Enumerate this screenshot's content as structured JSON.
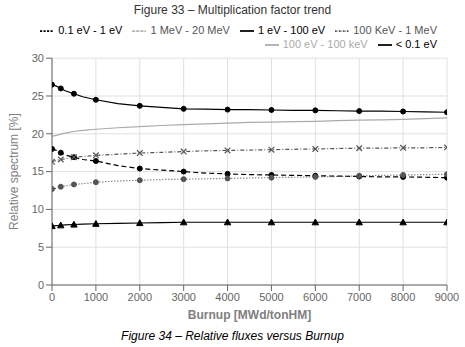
{
  "chart_data": {
    "type": "line",
    "title": "Figure 33 – Multiplication factor trend",
    "subtitle": "Figure 34 – Relative fluxes versus Burnup",
    "x_label": "Burnup [MWd/tonHM]",
    "y_label": "Relative spectrum [%]",
    "xlim": [
      0,
      9000
    ],
    "ylim": [
      0,
      30
    ],
    "xticks": [
      0,
      1000,
      2000,
      3000,
      4000,
      5000,
      6000,
      7000,
      8000,
      9000
    ],
    "yticks": [
      0,
      5,
      10,
      15,
      20,
      25,
      30
    ],
    "grid": true,
    "legend": "upper right",
    "x": [
      0,
      100,
      200,
      300,
      500,
      700,
      1000,
      1500,
      2000,
      2500,
      3000,
      3500,
      4000,
      4500,
      5000,
      5500,
      6000,
      6500,
      7000,
      7500,
      8000,
      8500,
      9000
    ],
    "series": [
      {
        "name": "< 0.1 eV",
        "color": "#000000",
        "marker": "circle",
        "line_style": "solid",
        "values": [
          26.5,
          26.3,
          26.0,
          25.7,
          25.3,
          24.9,
          24.5,
          24.0,
          23.7,
          23.5,
          23.3,
          23.25,
          23.2,
          23.2,
          23.15,
          23.1,
          23.1,
          23.05,
          23.0,
          23.0,
          22.95,
          22.9,
          22.85
        ]
      },
      {
        "name": "0.1 eV - 1 eV",
        "color": "#000000",
        "marker": "circle",
        "line_style": "dashed",
        "values": [
          18.0,
          17.8,
          17.5,
          17.2,
          16.9,
          16.6,
          16.4,
          15.8,
          15.4,
          15.2,
          15.0,
          14.8,
          14.7,
          14.6,
          14.55,
          14.5,
          14.45,
          14.4,
          14.35,
          14.3,
          14.3,
          14.25,
          14.2
        ]
      },
      {
        "name": "1 eV - 100 eV",
        "color": "#000000",
        "marker": "triangle",
        "line_style": "solid",
        "values": [
          7.8,
          7.85,
          7.9,
          7.95,
          8.0,
          8.05,
          8.1,
          8.15,
          8.2,
          8.25,
          8.3,
          8.3,
          8.3,
          8.3,
          8.3,
          8.3,
          8.3,
          8.3,
          8.3,
          8.3,
          8.3,
          8.3,
          8.3
        ]
      },
      {
        "name": "100 eV - 100 keV",
        "color": "#aaaaaa",
        "marker": "none",
        "line_style": "solid",
        "values": [
          19.7,
          19.8,
          19.95,
          20.1,
          20.3,
          20.45,
          20.6,
          20.8,
          20.95,
          21.1,
          21.2,
          21.3,
          21.4,
          21.5,
          21.55,
          21.6,
          21.65,
          21.75,
          21.8,
          21.85,
          21.9,
          22.0,
          22.1
        ]
      },
      {
        "name": "100 KeV - 1 MeV",
        "color": "#555555",
        "marker": "cross",
        "line_style": "dashdot",
        "values": [
          16.3,
          16.5,
          16.6,
          16.7,
          16.9,
          17.0,
          17.15,
          17.3,
          17.45,
          17.55,
          17.65,
          17.75,
          17.8,
          17.85,
          17.9,
          17.95,
          18.0,
          18.05,
          18.1,
          18.1,
          18.15,
          18.15,
          18.2
        ]
      },
      {
        "name": "1 MeV - 20 MeV",
        "color": "#555555",
        "marker": "circle",
        "line_style": "dotted",
        "values": [
          12.7,
          12.8,
          13.0,
          13.1,
          13.3,
          13.4,
          13.6,
          13.75,
          13.85,
          13.95,
          14.0,
          14.05,
          14.1,
          14.15,
          14.2,
          14.25,
          14.3,
          14.35,
          14.45,
          14.5,
          14.55,
          14.6,
          14.65
        ]
      }
    ]
  }
}
